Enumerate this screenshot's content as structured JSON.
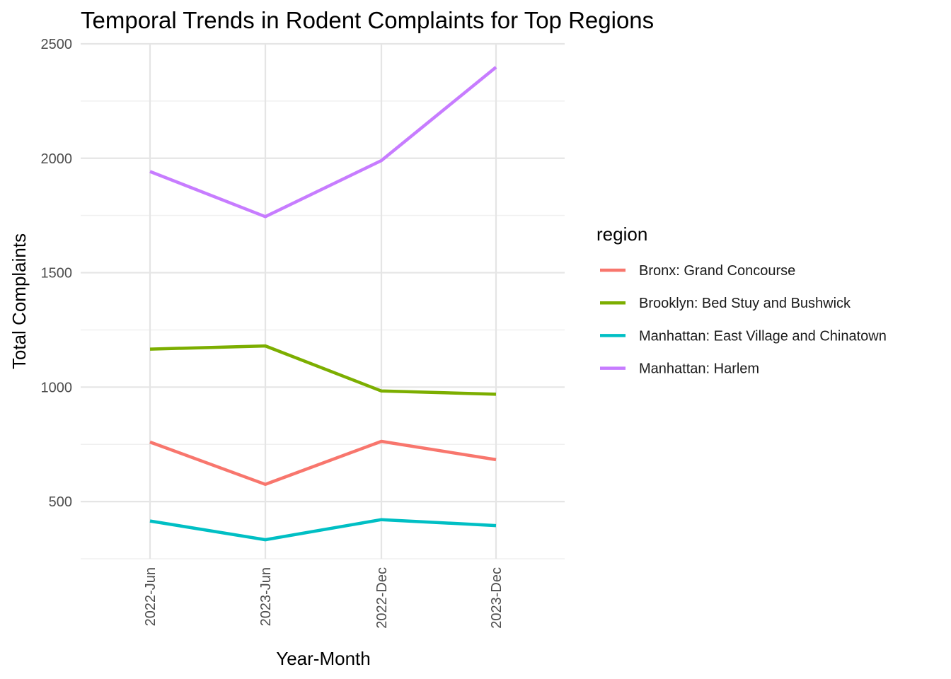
{
  "chart_data": {
    "type": "line",
    "title": "Temporal Trends in Rodent Complaints for Top Regions",
    "xlabel": "Year-Month",
    "ylabel": "Total Complaints",
    "categories": [
      "2022-Jun",
      "2023-Jun",
      "2022-Dec",
      "2023-Dec"
    ],
    "ylim": [
      250,
      2500
    ],
    "yticks": [
      500,
      1000,
      1500,
      2000,
      2500
    ],
    "grid": true,
    "legend": {
      "title": "region",
      "placement": "right"
    },
    "series": [
      {
        "name": "Bronx: Grand Concourse",
        "color": "#F8766D",
        "values": [
          760,
          575,
          763,
          683
        ]
      },
      {
        "name": "Brooklyn: Bed Stuy and Bushwick",
        "color": "#7CAE00",
        "values": [
          1166,
          1180,
          983,
          969
        ]
      },
      {
        "name": "Manhattan: East Village and Chinatown",
        "color": "#00BFC4",
        "values": [
          415,
          333,
          421,
          395
        ]
      },
      {
        "name": "Manhattan: Harlem",
        "color": "#C77CFF",
        "values": [
          1942,
          1745,
          1990,
          2398
        ]
      }
    ]
  }
}
